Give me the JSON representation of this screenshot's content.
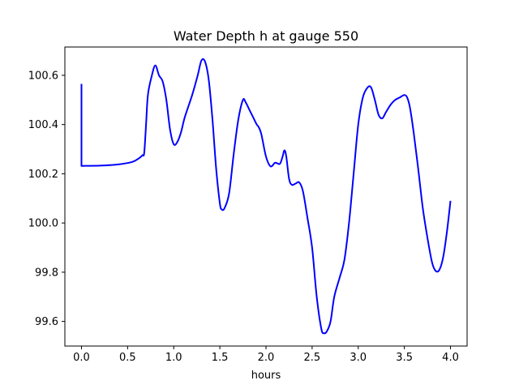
{
  "chart_data": {
    "type": "line",
    "title": "Water Depth h at gauge 550",
    "xlabel": "hours",
    "ylabel": "",
    "xlim": [
      -0.18,
      4.18
    ],
    "ylim": [
      99.5,
      100.715
    ],
    "xticks": [
      0.0,
      0.5,
      1.0,
      1.5,
      2.0,
      2.5,
      3.0,
      3.5,
      4.0
    ],
    "xtick_labels": [
      "0.0",
      "0.5",
      "1.0",
      "1.5",
      "2.0",
      "2.5",
      "3.0",
      "3.5",
      "4.0"
    ],
    "yticks": [
      99.6,
      99.8,
      100.0,
      100.2,
      100.4,
      100.6
    ],
    "ytick_labels": [
      "99.6",
      "99.8",
      "100.0",
      "100.2",
      "100.4",
      "100.6"
    ],
    "grid": false,
    "legend": false,
    "colors": {
      "line": "#0000ff",
      "axes": "#000000",
      "background": "#ffffff"
    },
    "series": [
      {
        "x": [
          0.0,
          0.0,
          0.2,
          0.4,
          0.55,
          0.62,
          0.66,
          0.68,
          0.7,
          0.72,
          0.76,
          0.8,
          0.84,
          0.88,
          0.92,
          0.96,
          1.0,
          1.04,
          1.08,
          1.12,
          1.2,
          1.26,
          1.3,
          1.34,
          1.38,
          1.42,
          1.46,
          1.5,
          1.52,
          1.55,
          1.6,
          1.65,
          1.7,
          1.75,
          1.78,
          1.82,
          1.86,
          1.9,
          1.92,
          1.95,
          2.0,
          2.05,
          2.1,
          2.15,
          2.18,
          2.2,
          2.22,
          2.25,
          2.28,
          2.32,
          2.36,
          2.4,
          2.45,
          2.5,
          2.55,
          2.6,
          2.63,
          2.66,
          2.7,
          2.74,
          2.8,
          2.85,
          2.9,
          2.95,
          3.0,
          3.05,
          3.1,
          3.14,
          3.18,
          3.22,
          3.26,
          3.3,
          3.35,
          3.4,
          3.45,
          3.5,
          3.53,
          3.56,
          3.6,
          3.65,
          3.7,
          3.75,
          3.8,
          3.84,
          3.88,
          3.92,
          3.96,
          4.0
        ],
        "y": [
          100.565,
          100.232,
          100.233,
          100.238,
          100.248,
          100.262,
          100.275,
          100.285,
          100.4,
          100.52,
          100.595,
          100.64,
          100.6,
          100.575,
          100.5,
          100.38,
          100.32,
          100.33,
          100.37,
          100.43,
          100.52,
          100.6,
          100.66,
          100.655,
          100.58,
          100.42,
          100.22,
          100.08,
          100.055,
          100.06,
          100.12,
          100.28,
          100.42,
          100.5,
          100.49,
          100.46,
          100.43,
          100.4,
          100.39,
          100.36,
          100.27,
          100.23,
          100.245,
          100.24,
          100.27,
          100.295,
          100.27,
          100.18,
          100.155,
          100.16,
          100.165,
          100.13,
          100.02,
          99.9,
          99.7,
          99.57,
          99.552,
          99.56,
          99.6,
          99.7,
          99.78,
          99.85,
          100.0,
          100.2,
          100.4,
          100.51,
          100.55,
          100.55,
          100.5,
          100.44,
          100.425,
          100.45,
          100.48,
          100.5,
          100.51,
          100.52,
          100.51,
          100.47,
          100.37,
          100.22,
          100.06,
          99.94,
          99.84,
          99.805,
          99.81,
          99.86,
          99.96,
          100.09
        ]
      }
    ]
  }
}
